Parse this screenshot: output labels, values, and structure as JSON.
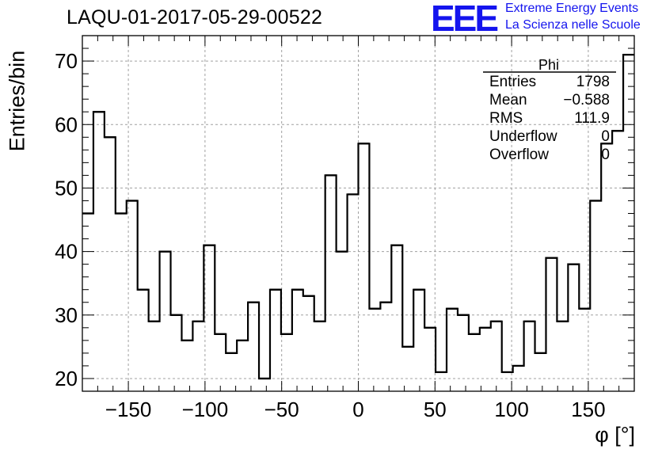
{
  "chart_data": {
    "type": "bar",
    "style": "step-histogram",
    "title": "LAQU-01-2017-05-29-00522",
    "xlabel": "φ [°]",
    "ylabel": "Entries/bin",
    "xlim": [
      -180,
      180
    ],
    "ylim": [
      18,
      74
    ],
    "grid": true,
    "bin_edges_start": -180,
    "bin_width": 7.2,
    "values": [
      46,
      62,
      58,
      46,
      48,
      34,
      29,
      40,
      30,
      26,
      29,
      41,
      27,
      24,
      26,
      32,
      20,
      34,
      27,
      34,
      33,
      29,
      52,
      40,
      49,
      57,
      31,
      32,
      41,
      25,
      34,
      28,
      21,
      31,
      30,
      27,
      28,
      29,
      21,
      22,
      29,
      24,
      39,
      29,
      38,
      31,
      48,
      57,
      59,
      71
    ],
    "xticks": [
      -150,
      -100,
      -50,
      0,
      50,
      100,
      150
    ],
    "xtick_labels": [
      "−150",
      "−100",
      "−50",
      "0",
      "50",
      "100",
      "150"
    ],
    "yticks": [
      20,
      30,
      40,
      50,
      60,
      70
    ],
    "ytick_labels": [
      "20",
      "30",
      "40",
      "50",
      "60",
      "70"
    ],
    "colors": {
      "line": "#000000",
      "grid": "#a0a0a0",
      "logo": "#1414ee"
    }
  },
  "stats_box": {
    "title": "Phi",
    "rows": [
      {
        "key": "Entries",
        "value": "1798"
      },
      {
        "key": "Mean",
        "value": "−0.588"
      },
      {
        "key": "RMS",
        "value": "111.9"
      },
      {
        "key": "Underflow",
        "value": "0"
      },
      {
        "key": "Overflow",
        "value": "0"
      }
    ]
  },
  "logo": {
    "mark": "EEE",
    "line1": "Extreme Energy Events",
    "line2": "La Scienza nelle Scuole"
  }
}
